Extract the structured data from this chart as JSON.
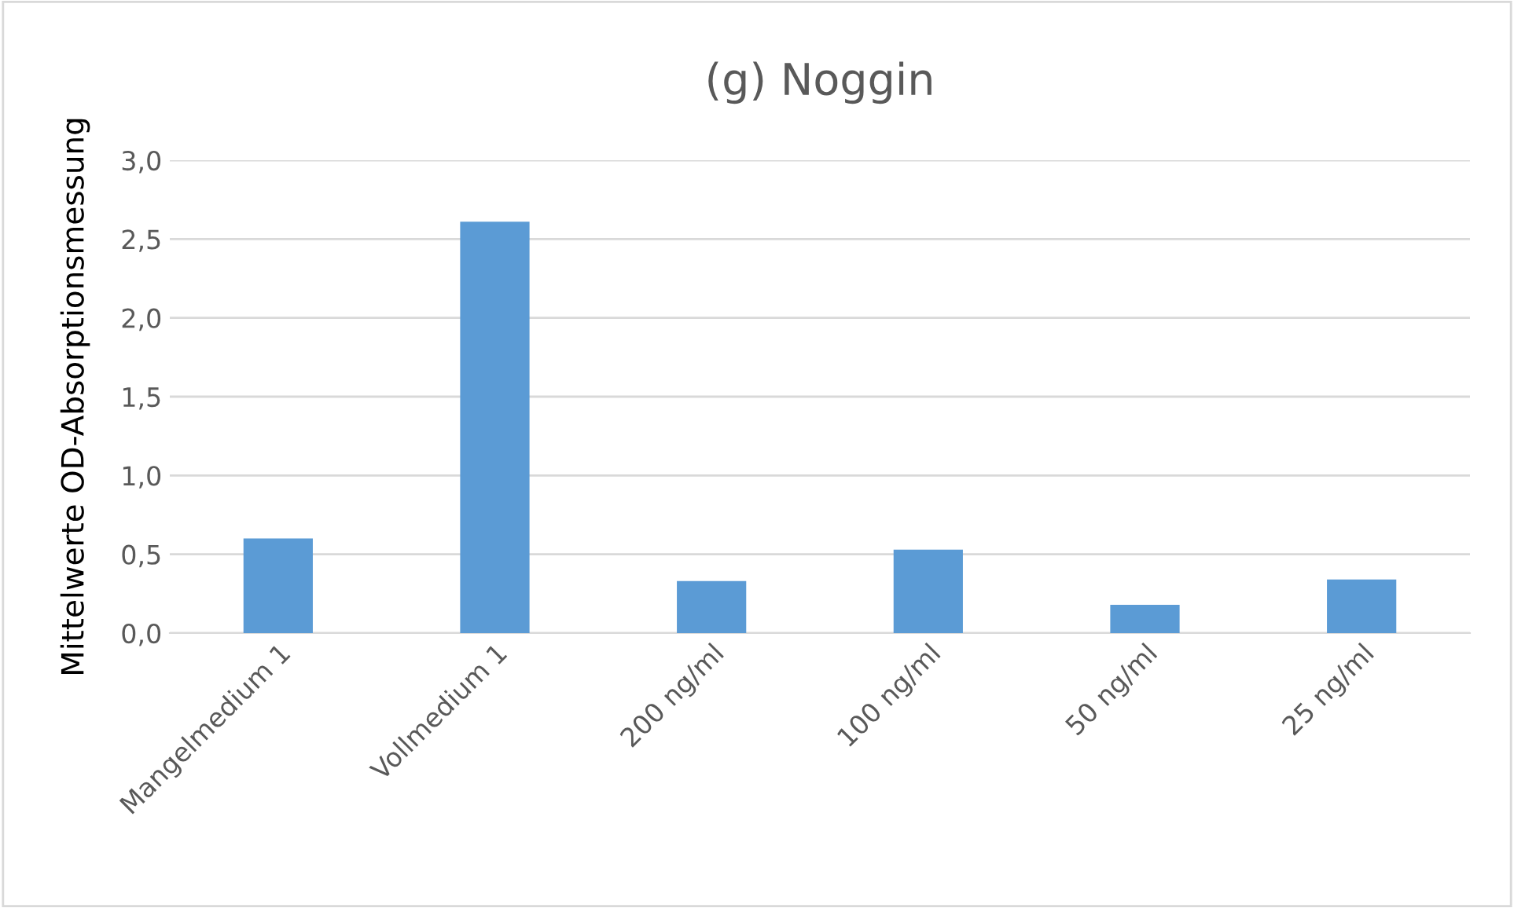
{
  "chart_data": {
    "type": "bar",
    "title": "(g) Noggin",
    "ylabel": "Mittelwerte OD-Absorptionsmessung",
    "categories": [
      "Mangelmedium 1",
      "Vollmedium 1",
      "200 ng/ml",
      "100 ng/ml",
      "50 ng/ml",
      "25 ng/ml"
    ],
    "values": [
      0.6,
      2.61,
      0.33,
      0.53,
      0.18,
      0.34
    ],
    "color": "#5b9bd5",
    "ylim": [
      0,
      3.0
    ],
    "yticks": [
      {
        "value": 0,
        "label": "0,0"
      },
      {
        "value": 0.5,
        "label": "0,5"
      },
      {
        "value": 1.0,
        "label": "1,0"
      },
      {
        "value": 1.5,
        "label": "1,5"
      },
      {
        "value": 2.0,
        "label": "2,0"
      },
      {
        "value": 2.5,
        "label": "2,5"
      },
      {
        "value": 3.0,
        "label": "3,0"
      }
    ],
    "grid": "y",
    "legend": false
  }
}
